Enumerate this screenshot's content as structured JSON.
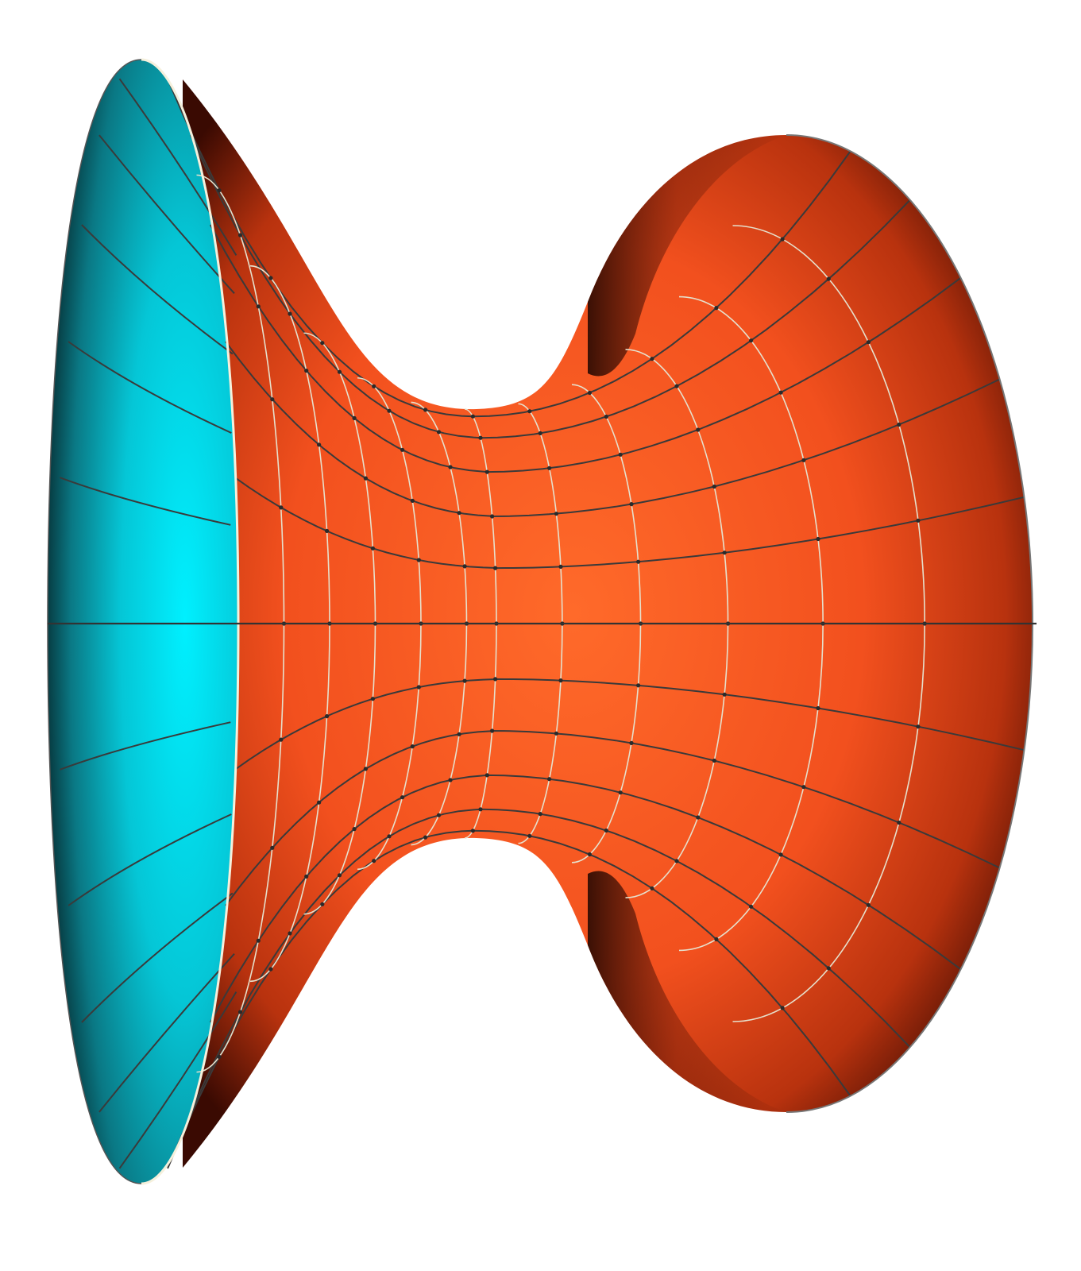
{
  "figure": {
    "subject": "catenoid",
    "background": "#ffffff",
    "colors": {
      "outer_surface_light": "#ff6a2a",
      "outer_surface_mid": "#e8401a",
      "outer_surface_dark": "#3a0a02",
      "inner_surface_light": "#00f0ff",
      "inner_surface_mid": "#00aebf",
      "inner_surface_dark": "#062e33",
      "grid_line_dark": "#3a3a3a",
      "grid_line_light": "#e6e0cc",
      "rim": "#f5f0dc"
    },
    "mesh": {
      "meridians": 24,
      "parallels": 12,
      "visible_vertex_dots": true
    }
  }
}
